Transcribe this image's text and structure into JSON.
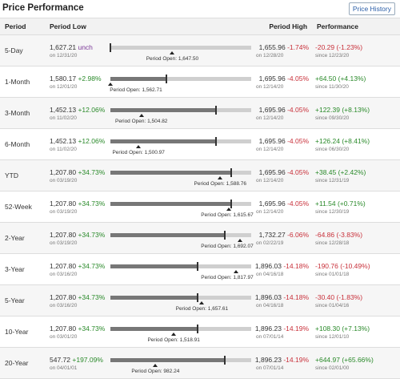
{
  "title": "Price Performance",
  "history_button": "Price History",
  "headers": {
    "period": "Period",
    "low": "Period Low",
    "high": "Period High",
    "perf": "Performance"
  },
  "open_prefix": "Period Open: ",
  "rows": [
    {
      "period": "5-Day",
      "low": "1,627.21",
      "low_chg": "unch",
      "low_cls": "unch",
      "low_date": "on 12/31/20",
      "high": "1,655.96",
      "high_chg": "-1.74%",
      "high_date": "on 12/28/20",
      "open": "1,647.50",
      "fill": 0.0,
      "tick": 0.0,
      "open_pos": 0.44,
      "perf": "-20.29 (-1.23%)",
      "perf_cls": "neg",
      "since": "since 12/23/20"
    },
    {
      "period": "1-Month",
      "low": "1,580.17",
      "low_chg": "+2.98%",
      "low_cls": "pos",
      "low_date": "on 12/01/20",
      "high": "1,695.96",
      "high_chg": "-4.05%",
      "high_date": "on 12/14/20",
      "open": "1,562.71",
      "fill": 0.4,
      "tick": 0.4,
      "open_pos": 0.0,
      "perf": "+64.50 (+4.13%)",
      "perf_cls": "pos",
      "since": "since 11/30/20"
    },
    {
      "period": "3-Month",
      "low": "1,452.13",
      "low_chg": "+12.06%",
      "low_cls": "pos",
      "low_date": "on 11/02/20",
      "high": "1,695.96",
      "high_chg": "-4.05%",
      "high_date": "on 12/14/20",
      "open": "1,504.82",
      "fill": 0.75,
      "tick": 0.75,
      "open_pos": 0.22,
      "perf": "+122.39 (+8.13%)",
      "perf_cls": "pos",
      "since": "since 09/30/20"
    },
    {
      "period": "6-Month",
      "low": "1,452.13",
      "low_chg": "+12.06%",
      "low_cls": "pos",
      "low_date": "on 11/02/20",
      "high": "1,695.96",
      "high_chg": "-4.05%",
      "high_date": "on 12/14/20",
      "open": "1,500.97",
      "fill": 0.75,
      "tick": 0.75,
      "open_pos": 0.2,
      "perf": "+126.24 (+8.41%)",
      "perf_cls": "pos",
      "since": "since 06/30/20"
    },
    {
      "period": "YTD",
      "low": "1,207.80",
      "low_chg": "+34.73%",
      "low_cls": "pos",
      "low_date": "on 03/19/20",
      "high": "1,695.96",
      "high_chg": "-4.05%",
      "high_date": "on 12/14/20",
      "open": "1,588.76",
      "fill": 0.86,
      "tick": 0.86,
      "open_pos": 0.78,
      "perf": "+38.45 (+2.42%)",
      "perf_cls": "pos",
      "since": "since 12/31/19"
    },
    {
      "period": "52-Week",
      "low": "1,207.80",
      "low_chg": "+34.73%",
      "low_cls": "pos",
      "low_date": "on 03/19/20",
      "high": "1,695.96",
      "high_chg": "-4.05%",
      "high_date": "on 12/14/20",
      "open": "1,615.67",
      "fill": 0.86,
      "tick": 0.86,
      "open_pos": 0.84,
      "perf": "+11.54 (+0.71%)",
      "perf_cls": "pos",
      "since": "since 12/30/19"
    },
    {
      "period": "2-Year",
      "low": "1,207.80",
      "low_chg": "+34.73%",
      "low_cls": "pos",
      "low_date": "on 03/19/20",
      "high": "1,732.27",
      "high_chg": "-6.06%",
      "high_date": "on 02/22/19",
      "open": "1,692.07",
      "fill": 0.81,
      "tick": 0.81,
      "open_pos": 0.92,
      "perf": "-64.86 (-3.83%)",
      "perf_cls": "neg",
      "since": "since 12/28/18"
    },
    {
      "period": "3-Year",
      "low": "1,207.80",
      "low_chg": "+34.73%",
      "low_cls": "pos",
      "low_date": "on 03/16/20",
      "high": "1,896.03",
      "high_chg": "-14.18%",
      "high_date": "on 04/16/18",
      "open": "1,817.97",
      "fill": 0.62,
      "tick": 0.62,
      "open_pos": 0.89,
      "perf": "-190.76 (-10.49%)",
      "perf_cls": "neg",
      "since": "since 01/01/18"
    },
    {
      "period": "5-Year",
      "low": "1,207.80",
      "low_chg": "+34.73%",
      "low_cls": "pos",
      "low_date": "on 03/16/20",
      "high": "1,896.03",
      "high_chg": "-14.18%",
      "high_date": "on 04/16/18",
      "open": "1,657.61",
      "fill": 0.62,
      "tick": 0.62,
      "open_pos": 0.65,
      "perf": "-30.40 (-1.83%)",
      "perf_cls": "neg",
      "since": "since 01/04/16"
    },
    {
      "period": "10-Year",
      "low": "1,207.80",
      "low_chg": "+34.73%",
      "low_cls": "pos",
      "low_date": "on 03/01/20",
      "high": "1,896.23",
      "high_chg": "-14.19%",
      "high_date": "on 07/01/14",
      "open": "1,518.91",
      "fill": 0.62,
      "tick": 0.62,
      "open_pos": 0.45,
      "perf": "+108.30 (+7.13%)",
      "perf_cls": "pos",
      "since": "since 12/01/10"
    },
    {
      "period": "20-Year",
      "low": "547.72",
      "low_chg": "+197.09%",
      "low_cls": "pos",
      "low_date": "on 04/01/01",
      "high": "1,896.23",
      "high_chg": "-14.19%",
      "high_date": "on 07/01/14",
      "open": "982.24",
      "fill": 0.81,
      "tick": 0.81,
      "open_pos": 0.32,
      "perf": "+644.97 (+65.66%)",
      "perf_cls": "pos",
      "since": "since 02/01/00"
    }
  ]
}
